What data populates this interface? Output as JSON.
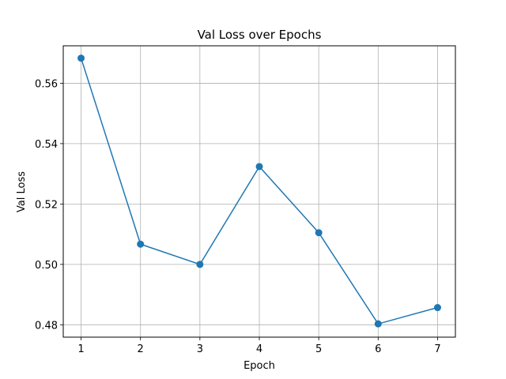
{
  "chart_data": {
    "type": "line",
    "title": "Val Loss over Epochs",
    "xlabel": "Epoch",
    "ylabel": "Val Loss",
    "x": [
      1,
      2,
      3,
      4,
      5,
      6,
      7
    ],
    "series": [
      {
        "values": [
          0.5683,
          0.5067,
          0.5,
          0.5324,
          0.5105,
          0.4803,
          0.4857
        ],
        "color": "#1f77b4",
        "marker": "circle"
      }
    ],
    "xlim": [
      0.7,
      7.3
    ],
    "ylim": [
      0.4759,
      0.5724
    ],
    "xticks": [
      "1",
      "2",
      "3",
      "4",
      "5",
      "6",
      "7"
    ],
    "yticks": [
      "0.48",
      "0.50",
      "0.52",
      "0.54",
      "0.56"
    ],
    "grid": true
  }
}
